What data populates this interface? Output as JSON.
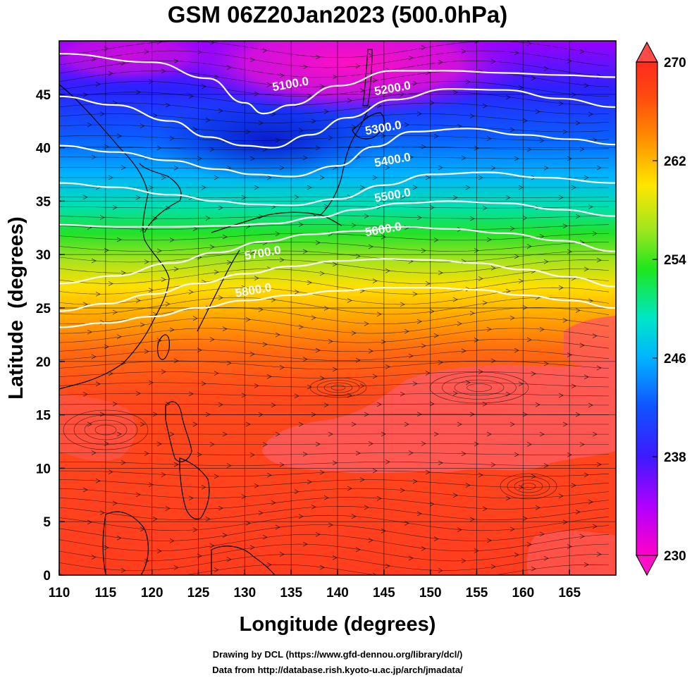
{
  "title": "GSM 06Z20Jan2023 (500.0hPa)",
  "xaxis": {
    "label": "Longitude (degrees)",
    "range": [
      110,
      170
    ],
    "ticks": [
      110,
      115,
      120,
      125,
      130,
      135,
      140,
      145,
      150,
      155,
      160,
      165
    ]
  },
  "yaxis": {
    "label": "Latitude  (degrees)",
    "range": [
      0,
      50
    ],
    "ticks": [
      0,
      5,
      10,
      15,
      20,
      25,
      30,
      35,
      40,
      45
    ]
  },
  "colorbar": {
    "min": 230,
    "max": 270,
    "tick_labels": [
      "230",
      "238",
      "246",
      "254",
      "262",
      "270"
    ],
    "tick_values": [
      230,
      238,
      246,
      254,
      262,
      270
    ],
    "colors": [
      "#ff00c8",
      "#9a00ff",
      "#1f1fff",
      "#00b4ff",
      "#00e6c8",
      "#1ee61e",
      "#a0e61e",
      "#ffe600",
      "#ff9600",
      "#ff4600",
      "#ff2a1e"
    ]
  },
  "contours": [
    {
      "label": "5100.0",
      "lat_profile": [
        [
          110,
          48.8
        ],
        [
          120,
          48.0
        ],
        [
          126,
          46.5
        ],
        [
          130,
          44.2
        ],
        [
          132,
          43.2
        ],
        [
          135,
          44.0
        ],
        [
          140,
          45.8
        ],
        [
          146,
          47.2
        ],
        [
          152,
          47.2
        ],
        [
          158,
          47.0
        ],
        [
          164,
          46.8
        ],
        [
          170,
          46.6
        ]
      ],
      "label_at": [
        135,
        45.6
      ]
    },
    {
      "label": "5200.0",
      "lat_profile": [
        [
          110,
          44.8
        ],
        [
          116,
          44.0
        ],
        [
          122,
          42.5
        ],
        [
          126,
          41.0
        ],
        [
          130,
          40.2
        ],
        [
          133,
          40.0
        ],
        [
          137,
          41.2
        ],
        [
          141,
          42.8
        ],
        [
          146,
          44.5
        ],
        [
          152,
          45.5
        ],
        [
          158,
          45.4
        ],
        [
          164,
          44.6
        ],
        [
          170,
          43.8
        ]
      ],
      "label_at": [
        146,
        45.2
      ]
    },
    {
      "label": "5300.0",
      "lat_profile": [
        [
          110,
          40.2
        ],
        [
          116,
          39.6
        ],
        [
          122,
          38.8
        ],
        [
          127,
          38.0
        ],
        [
          131,
          37.5
        ],
        [
          135,
          37.3
        ],
        [
          140,
          38.3
        ],
        [
          144,
          40.1
        ],
        [
          148,
          41.5
        ],
        [
          154,
          41.8
        ],
        [
          160,
          41.2
        ],
        [
          165,
          40.8
        ],
        [
          170,
          40.3
        ]
      ],
      "label_at": [
        145,
        41.5
      ]
    },
    {
      "label": "5400.0",
      "lat_profile": [
        [
          110,
          36.7
        ],
        [
          116,
          36.3
        ],
        [
          122,
          35.6
        ],
        [
          127,
          35.0
        ],
        [
          131,
          34.7
        ],
        [
          135,
          34.6
        ],
        [
          140,
          35.2
        ],
        [
          145,
          36.5
        ],
        [
          150,
          37.5
        ],
        [
          156,
          37.7
        ],
        [
          162,
          37.2
        ],
        [
          170,
          36.7
        ]
      ],
      "label_at": [
        146,
        38.5
      ]
    },
    {
      "label": "5500.0",
      "lat_profile": [
        [
          110,
          32.8
        ],
        [
          116,
          32.6
        ],
        [
          122,
          32.6
        ],
        [
          128,
          32.7
        ],
        [
          133,
          32.9
        ],
        [
          138,
          33.5
        ],
        [
          142,
          34.2
        ],
        [
          147,
          34.8
        ],
        [
          152,
          35.0
        ],
        [
          158,
          34.8
        ],
        [
          164,
          34.2
        ],
        [
          170,
          33.6
        ]
      ],
      "label_at": [
        146,
        35.2
      ]
    },
    {
      "label": "5600.0",
      "lat_profile": [
        [
          110,
          27.3
        ],
        [
          116,
          28.0
        ],
        [
          122,
          29.2
        ],
        [
          127,
          30.2
        ],
        [
          132,
          31.2
        ],
        [
          137,
          31.9
        ],
        [
          142,
          32.2
        ],
        [
          147,
          32.6
        ],
        [
          152,
          32.4
        ],
        [
          158,
          32.0
        ],
        [
          164,
          31.3
        ],
        [
          170,
          30.3
        ]
      ],
      "label_at": [
        145,
        32.0
      ]
    },
    {
      "label": "5700.0",
      "lat_profile": [
        [
          110,
          24.7
        ],
        [
          115,
          25.4
        ],
        [
          120,
          26.3
        ],
        [
          125,
          27.3
        ],
        [
          130,
          28.2
        ],
        [
          135,
          28.9
        ],
        [
          140,
          29.4
        ],
        [
          145,
          29.6
        ],
        [
          150,
          29.5
        ],
        [
          155,
          29.2
        ],
        [
          160,
          28.6
        ],
        [
          165,
          27.9
        ],
        [
          170,
          27.0
        ]
      ],
      "label_at": [
        132,
        29.8
      ]
    },
    {
      "label": "5800.0",
      "lat_profile": [
        [
          110,
          23.2
        ],
        [
          115,
          23.6
        ],
        [
          120,
          24.2
        ],
        [
          125,
          25.0
        ],
        [
          130,
          25.7
        ],
        [
          135,
          26.2
        ],
        [
          140,
          26.6
        ],
        [
          145,
          26.9
        ],
        [
          150,
          26.9
        ],
        [
          155,
          26.7
        ],
        [
          160,
          26.2
        ],
        [
          165,
          25.7
        ],
        [
          170,
          25.0
        ]
      ],
      "label_at": [
        131,
        26.3
      ]
    }
  ],
  "credits": {
    "line1": "Drawing by DCL (https://www.gfd-dennou.org/library/dcl/)",
    "line2": "Data from http://database.rish.kyoto-u.ac.jp/arch/jmadata/"
  },
  "colors": {
    "contour": "#ffffff",
    "coast": "#000000",
    "grid": "#000000",
    "streamline": "#000000",
    "warm_high": "#ff5a5a"
  }
}
